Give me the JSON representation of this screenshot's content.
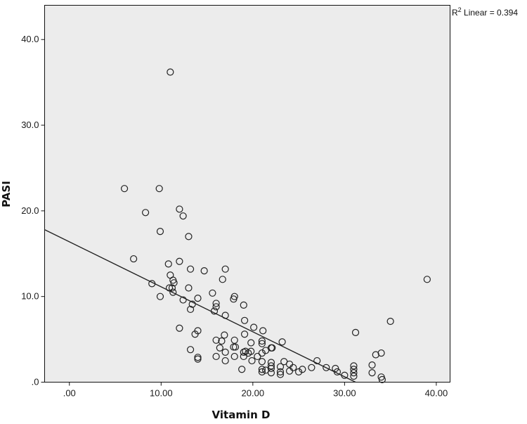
{
  "chart_data": {
    "type": "scatter",
    "xlabel": "Vitamin D",
    "ylabel": "PASI",
    "xlim": [
      -2.7,
      41.5
    ],
    "ylim": [
      0,
      44
    ],
    "xticks": [
      0,
      10,
      20,
      30,
      40
    ],
    "xtick_labels": [
      ".00",
      "10.00",
      "20.00",
      "30.00",
      "40.00"
    ],
    "yticks": [
      0,
      10,
      20,
      30,
      40
    ],
    "ytick_labels": [
      ".0",
      "10.0",
      "20.0",
      "30.0",
      "40.0"
    ],
    "fit_line": {
      "label": "R",
      "superscript": "2",
      "label_suffix": " Linear = 0.394",
      "points": [
        [
          -2.7,
          17.8
        ],
        [
          31.2,
          0
        ]
      ]
    },
    "points": [
      [
        11.0,
        36.2
      ],
      [
        6.0,
        22.6
      ],
      [
        9.8,
        22.6
      ],
      [
        8.3,
        19.8
      ],
      [
        12.0,
        20.2
      ],
      [
        12.4,
        19.4
      ],
      [
        9.9,
        17.6
      ],
      [
        13.0,
        17.0
      ],
      [
        7.0,
        14.4
      ],
      [
        12.0,
        14.1
      ],
      [
        10.8,
        13.8
      ],
      [
        13.2,
        13.2
      ],
      [
        14.7,
        13.0
      ],
      [
        17.0,
        13.2
      ],
      [
        11.0,
        12.5
      ],
      [
        11.3,
        11.9
      ],
      [
        11.4,
        11.6
      ],
      [
        9.0,
        11.5
      ],
      [
        16.7,
        12.0
      ],
      [
        10.9,
        11.0
      ],
      [
        11.2,
        11.0
      ],
      [
        13.0,
        11.0
      ],
      [
        11.3,
        10.5
      ],
      [
        15.6,
        10.4
      ],
      [
        9.9,
        10.0
      ],
      [
        14.0,
        9.8
      ],
      [
        12.4,
        9.6
      ],
      [
        18.0,
        10.0
      ],
      [
        17.9,
        9.7
      ],
      [
        13.4,
        9.1
      ],
      [
        16.0,
        9.2
      ],
      [
        16.0,
        8.8
      ],
      [
        19.0,
        9.0
      ],
      [
        13.2,
        8.5
      ],
      [
        15.8,
        8.3
      ],
      [
        17.0,
        7.8
      ],
      [
        19.1,
        7.2
      ],
      [
        20.1,
        6.4
      ],
      [
        12.0,
        6.3
      ],
      [
        14.0,
        6.0
      ],
      [
        13.7,
        5.6
      ],
      [
        16.9,
        5.5
      ],
      [
        19.1,
        5.6
      ],
      [
        21.1,
        6.0
      ],
      [
        31.2,
        5.8
      ],
      [
        35.0,
        7.1
      ],
      [
        39.0,
        12.0
      ],
      [
        16.0,
        4.9
      ],
      [
        16.6,
        4.8
      ],
      [
        18.0,
        4.9
      ],
      [
        19.8,
        4.6
      ],
      [
        21.0,
        4.8
      ],
      [
        21.0,
        4.5
      ],
      [
        23.2,
        4.7
      ],
      [
        17.9,
        4.1
      ],
      [
        18.1,
        4.1
      ],
      [
        16.4,
        4.0
      ],
      [
        22.0,
        4.0
      ],
      [
        22.1,
        4.0
      ],
      [
        13.2,
        3.8
      ],
      [
        17.0,
        3.5
      ],
      [
        19.0,
        3.5
      ],
      [
        19.2,
        3.6
      ],
      [
        19.8,
        3.6
      ],
      [
        19.5,
        3.4
      ],
      [
        21.4,
        3.7
      ],
      [
        21.0,
        3.4
      ],
      [
        18.0,
        3.0
      ],
      [
        14.0,
        2.9
      ],
      [
        16.0,
        3.0
      ],
      [
        19.0,
        3.0
      ],
      [
        20.5,
        3.0
      ],
      [
        33.4,
        3.2
      ],
      [
        34.0,
        3.4
      ],
      [
        14.0,
        2.7
      ],
      [
        17.0,
        2.5
      ],
      [
        19.9,
        2.5
      ],
      [
        21.0,
        2.4
      ],
      [
        22.0,
        2.3
      ],
      [
        23.4,
        2.4
      ],
      [
        24.0,
        2.1
      ],
      [
        27.0,
        2.5
      ],
      [
        33.0,
        2.0
      ],
      [
        22.0,
        1.9
      ],
      [
        23.0,
        1.8
      ],
      [
        24.4,
        1.7
      ],
      [
        26.4,
        1.7
      ],
      [
        28.0,
        1.7
      ],
      [
        29.0,
        1.6
      ],
      [
        31.0,
        1.9
      ],
      [
        18.8,
        1.5
      ],
      [
        21.0,
        1.5
      ],
      [
        21.4,
        1.4
      ],
      [
        22.0,
        1.6
      ],
      [
        25.4,
        1.5
      ],
      [
        31.0,
        1.5
      ],
      [
        21.0,
        1.2
      ],
      [
        22.0,
        1.1
      ],
      [
        23.0,
        1.2
      ],
      [
        24.0,
        1.3
      ],
      [
        25.0,
        1.2
      ],
      [
        29.2,
        1.2
      ],
      [
        31.0,
        1.1
      ],
      [
        33.0,
        1.1
      ],
      [
        23.0,
        0.9
      ],
      [
        30.0,
        0.8
      ],
      [
        31.0,
        0.7
      ],
      [
        34.0,
        0.6
      ],
      [
        34.1,
        0.3
      ]
    ]
  }
}
